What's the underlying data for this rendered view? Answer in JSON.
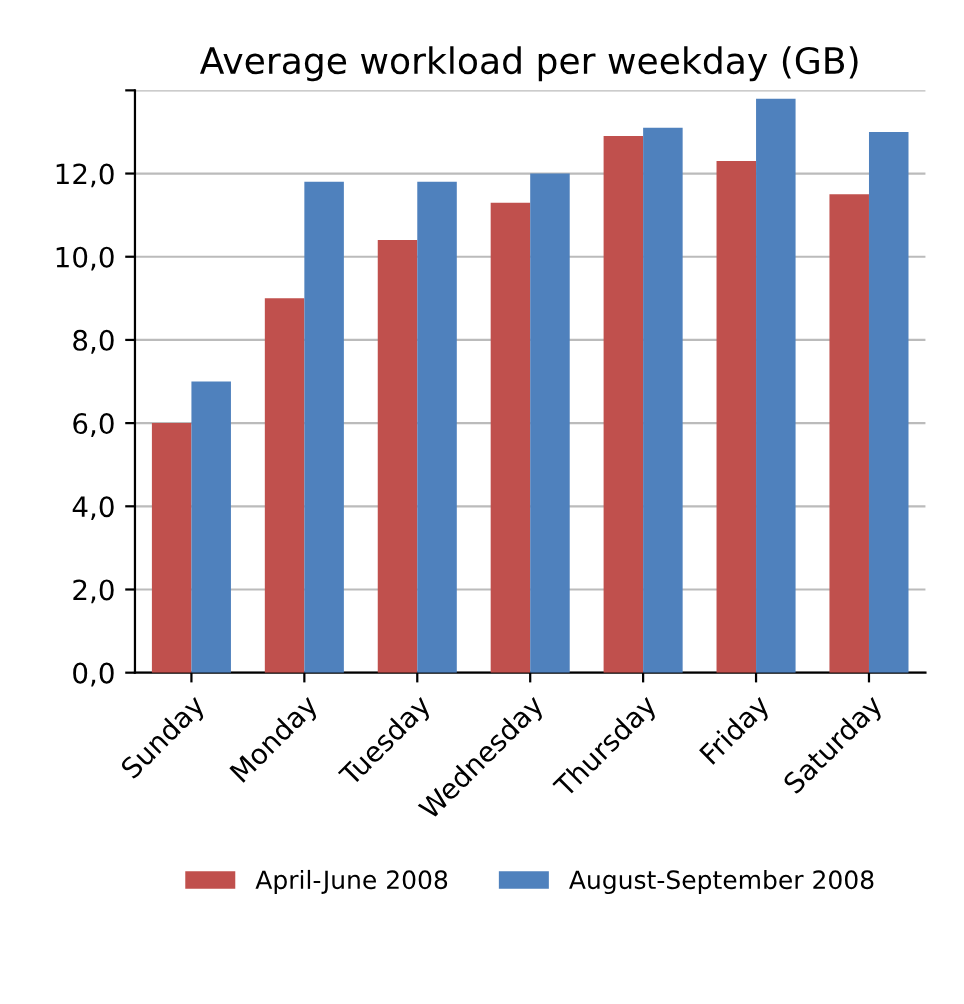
{
  "chart_data": {
    "type": "bar",
    "title": "Average workload per weekday (GB)",
    "categories": [
      "Sunday",
      "Monday",
      "Tuesday",
      "Wednesday",
      "Thursday",
      "Friday",
      "Saturday"
    ],
    "series": [
      {
        "name": "April-June 2008",
        "color": "#c0504d",
        "values": [
          6.0,
          9.0,
          10.4,
          11.3,
          12.9,
          12.3,
          11.5
        ]
      },
      {
        "name": "August-September 2008",
        "color": "#4f81bd",
        "values": [
          7.0,
          11.8,
          11.8,
          12.0,
          13.1,
          13.8,
          13.0
        ]
      }
    ],
    "ylim": [
      0,
      14
    ],
    "yticks": [
      {
        "value": 0,
        "label": "0,0"
      },
      {
        "value": 2,
        "label": "2,0"
      },
      {
        "value": 4,
        "label": "4,0"
      },
      {
        "value": 6,
        "label": "6,0"
      },
      {
        "value": 8,
        "label": "8,0"
      },
      {
        "value": 10,
        "label": "10,0"
      },
      {
        "value": 12,
        "label": "12,0"
      },
      {
        "value": 14,
        "label": null
      }
    ],
    "grid": "y",
    "legend": "bottom"
  }
}
